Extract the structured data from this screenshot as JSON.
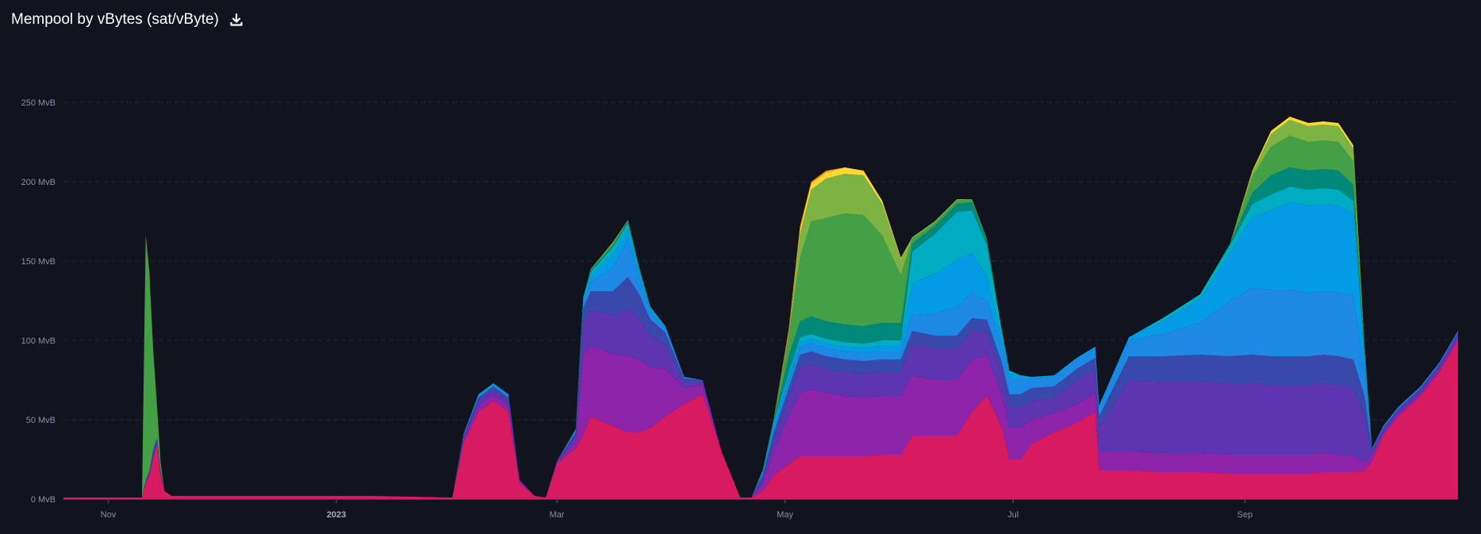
{
  "header": {
    "title": "Mempool by vBytes (sat/vByte)",
    "download_icon": "download-icon"
  },
  "colors": {
    "background": "#11131f",
    "gridline": "#262a3a",
    "tick_text": "#8a8fa3"
  },
  "chart_data": {
    "type": "area",
    "stacked": true,
    "title": "Mempool by vBytes (sat/vByte)",
    "unit": "MvB",
    "ylim": [
      0,
      250
    ],
    "yticks": [
      0,
      50,
      100,
      150,
      200,
      250
    ],
    "ytick_labels": [
      "0 MvB",
      "50 MvB",
      "100 MvB",
      "150 MvB",
      "200 MvB",
      "250 MvB"
    ],
    "x_range": [
      "2022-10-20",
      "2023-10-28"
    ],
    "xticks": [
      {
        "date": "2022-11-01",
        "label": "Nov",
        "bold": false
      },
      {
        "date": "2023-01-01",
        "label": "2023",
        "bold": true
      },
      {
        "date": "2023-03-01",
        "label": "Mar",
        "bold": false
      },
      {
        "date": "2023-05-01",
        "label": "May",
        "bold": false
      },
      {
        "date": "2023-07-01",
        "label": "Jul",
        "bold": false
      },
      {
        "date": "2023-09-01",
        "label": "Sep",
        "bold": false
      }
    ],
    "grid": true,
    "x": [
      "2022-10-20",
      "2022-11-10",
      "2022-11-11",
      "2022-11-12",
      "2022-11-13",
      "2022-11-14",
      "2022-11-15",
      "2022-11-16",
      "2022-11-18",
      "2022-12-15",
      "2023-01-10",
      "2023-02-01",
      "2023-02-04",
      "2023-02-08",
      "2023-02-12",
      "2023-02-16",
      "2023-02-19",
      "2023-02-23",
      "2023-02-26",
      "2023-03-01",
      "2023-03-06",
      "2023-03-08",
      "2023-03-10",
      "2023-03-16",
      "2023-03-20",
      "2023-03-23",
      "2023-03-26",
      "2023-03-30",
      "2023-04-04",
      "2023-04-09",
      "2023-04-14",
      "2023-04-19",
      "2023-04-22",
      "2023-04-25",
      "2023-04-28",
      "2023-05-02",
      "2023-05-05",
      "2023-05-08",
      "2023-05-12",
      "2023-05-17",
      "2023-05-22",
      "2023-05-27",
      "2023-06-01",
      "2023-06-04",
      "2023-06-10",
      "2023-06-16",
      "2023-06-20",
      "2023-06-24",
      "2023-06-28",
      "2023-06-30",
      "2023-07-03",
      "2023-07-06",
      "2023-07-12",
      "2023-07-18",
      "2023-07-23",
      "2023-07-24",
      "2023-08-01",
      "2023-08-10",
      "2023-08-20",
      "2023-08-28",
      "2023-09-03",
      "2023-09-08",
      "2023-09-13",
      "2023-09-18",
      "2023-09-22",
      "2023-09-26",
      "2023-09-30",
      "2023-10-03",
      "2023-10-05",
      "2023-10-08",
      "2023-10-12",
      "2023-10-18",
      "2023-10-23",
      "2023-10-28"
    ],
    "series": [
      {
        "color": "#d81b60",
        "values": [
          1,
          1,
          10,
          15,
          25,
          35,
          15,
          5,
          2,
          2,
          2,
          1,
          35,
          55,
          62,
          55,
          10,
          2,
          1,
          22,
          32,
          40,
          52,
          46,
          42,
          42,
          45,
          52,
          60,
          66,
          30,
          1,
          1,
          5,
          15,
          22,
          27,
          27,
          27,
          27,
          27,
          28,
          28,
          40,
          40,
          40,
          55,
          65,
          45,
          25,
          25,
          35,
          42,
          48,
          55,
          18,
          18,
          17,
          17,
          16,
          16,
          16,
          16,
          16,
          17,
          17,
          17,
          18,
          24,
          40,
          52,
          65,
          80,
          100
        ]
      },
      {
        "color": "#8e24aa",
        "values": [
          0,
          0,
          1,
          1,
          2,
          1,
          1,
          0,
          0,
          0,
          0,
          0,
          2,
          4,
          4,
          4,
          1,
          0,
          0,
          1,
          5,
          50,
          45,
          45,
          48,
          46,
          38,
          30,
          10,
          6,
          0,
          0,
          0,
          5,
          15,
          30,
          40,
          42,
          40,
          38,
          37,
          37,
          37,
          38,
          35,
          35,
          33,
          25,
          20,
          20,
          20,
          15,
          12,
          12,
          12,
          12,
          12,
          12,
          12,
          12,
          12,
          12,
          12,
          12,
          12,
          11,
          10,
          5,
          4,
          2,
          2,
          2,
          2,
          2
        ]
      },
      {
        "color": "#5e35b1",
        "values": [
          0,
          0,
          1,
          1,
          2,
          1,
          1,
          0,
          0,
          0,
          0,
          0,
          2,
          3,
          3,
          3,
          1,
          0,
          0,
          1,
          3,
          20,
          22,
          25,
          30,
          26,
          20,
          15,
          4,
          2,
          0,
          0,
          0,
          3,
          8,
          12,
          16,
          16,
          15,
          15,
          15,
          15,
          15,
          20,
          20,
          20,
          18,
          15,
          13,
          13,
          13,
          12,
          10,
          15,
          15,
          15,
          45,
          45,
          45,
          45,
          45,
          44,
          44,
          44,
          44,
          44,
          43,
          30,
          2,
          2,
          2,
          2,
          2,
          2
        ]
      },
      {
        "color": "#3949ab",
        "values": [
          0,
          0,
          0,
          1,
          1,
          1,
          1,
          0,
          0,
          0,
          0,
          0,
          1,
          2,
          2,
          2,
          0,
          0,
          0,
          0,
          2,
          10,
          12,
          15,
          20,
          15,
          10,
          8,
          2,
          1,
          0,
          0,
          0,
          2,
          4,
          6,
          8,
          8,
          8,
          8,
          8,
          8,
          8,
          8,
          8,
          8,
          8,
          8,
          8,
          8,
          8,
          8,
          7,
          7,
          7,
          7,
          15,
          16,
          17,
          17,
          18,
          18,
          18,
          18,
          18,
          18,
          18,
          12,
          1,
          1,
          1,
          1,
          1,
          1
        ]
      },
      {
        "color": "#1e88e5",
        "values": [
          0,
          0,
          0,
          0,
          1,
          1,
          0,
          0,
          0,
          0,
          0,
          0,
          1,
          1,
          1,
          1,
          0,
          0,
          0,
          0,
          1,
          4,
          6,
          15,
          24,
          10,
          5,
          3,
          1,
          0,
          0,
          0,
          0,
          1,
          3,
          4,
          5,
          5,
          5,
          5,
          5,
          5,
          5,
          10,
          14,
          18,
          16,
          12,
          10,
          10,
          10,
          6,
          6,
          6,
          6,
          6,
          10,
          14,
          20,
          35,
          42,
          42,
          42,
          40,
          40,
          40,
          40,
          14,
          1,
          1,
          1,
          1,
          1,
          1
        ]
      },
      {
        "color": "#039be5",
        "values": [
          0,
          0,
          0,
          0,
          1,
          0,
          0,
          0,
          0,
          0,
          0,
          0,
          0,
          1,
          1,
          1,
          0,
          0,
          0,
          0,
          1,
          2,
          4,
          8,
          6,
          4,
          2,
          1,
          0,
          0,
          0,
          0,
          0,
          1,
          2,
          3,
          3,
          3,
          3,
          3,
          3,
          4,
          4,
          20,
          25,
          30,
          25,
          15,
          5,
          3,
          2,
          1,
          1,
          1,
          1,
          1,
          2,
          8,
          15,
          30,
          45,
          50,
          55,
          55,
          55,
          55,
          52,
          10,
          0,
          0,
          0,
          0,
          0,
          0
        ]
      },
      {
        "color": "#00acc1",
        "values": [
          0,
          0,
          0,
          0,
          0,
          0,
          0,
          0,
          0,
          0,
          0,
          0,
          0,
          0,
          0,
          0,
          0,
          0,
          0,
          0,
          0,
          1,
          2,
          5,
          4,
          2,
          1,
          0,
          0,
          0,
          0,
          0,
          0,
          1,
          2,
          3,
          3,
          3,
          3,
          3,
          3,
          3,
          3,
          20,
          25,
          30,
          27,
          20,
          5,
          2,
          0,
          0,
          0,
          0,
          0,
          0,
          0,
          2,
          3,
          5,
          8,
          10,
          10,
          10,
          10,
          10,
          8,
          3,
          0,
          0,
          0,
          0,
          0,
          0
        ]
      },
      {
        "color": "#00897b",
        "values": [
          0,
          0,
          0,
          0,
          0,
          0,
          0,
          0,
          0,
          0,
          0,
          0,
          0,
          0,
          0,
          0,
          0,
          0,
          0,
          0,
          0,
          0,
          1,
          1,
          1,
          0,
          0,
          0,
          0,
          0,
          0,
          0,
          0,
          0,
          1,
          10,
          10,
          11,
          11,
          11,
          11,
          11,
          11,
          5,
          5,
          5,
          5,
          3,
          0,
          0,
          0,
          0,
          0,
          0,
          0,
          0,
          0,
          0,
          0,
          1,
          7,
          12,
          12,
          12,
          12,
          12,
          10,
          2,
          0,
          0,
          0,
          0,
          0,
          0
        ]
      },
      {
        "color": "#43a047",
        "values": [
          0,
          0,
          150,
          120,
          60,
          20,
          5,
          0,
          0,
          0,
          0,
          0,
          0,
          0,
          0,
          0,
          0,
          0,
          0,
          0,
          0,
          0,
          1,
          1,
          1,
          1,
          0,
          0,
          0,
          0,
          0,
          0,
          0,
          0,
          1,
          12,
          40,
          60,
          65,
          70,
          70,
          55,
          30,
          3,
          2,
          2,
          2,
          1,
          0,
          0,
          0,
          0,
          0,
          0,
          0,
          0,
          0,
          0,
          0,
          0,
          10,
          18,
          20,
          18,
          18,
          18,
          15,
          2,
          0,
          0,
          0,
          0,
          0,
          0
        ]
      },
      {
        "color": "#7cb342",
        "values": [
          0,
          0,
          3,
          3,
          2,
          1,
          0,
          0,
          0,
          0,
          0,
          0,
          0,
          0,
          0,
          0,
          0,
          0,
          0,
          0,
          0,
          0,
          0,
          1,
          0,
          0,
          0,
          0,
          0,
          0,
          0,
          0,
          0,
          0,
          0,
          2,
          15,
          20,
          25,
          25,
          25,
          20,
          10,
          1,
          1,
          1,
          0,
          0,
          0,
          0,
          0,
          0,
          0,
          0,
          0,
          0,
          0,
          0,
          0,
          0,
          3,
          8,
          10,
          10,
          10,
          10,
          8,
          1,
          0,
          0,
          0,
          0,
          0,
          0
        ]
      },
      {
        "color": "#fdd835",
        "values": [
          0,
          0,
          1,
          1,
          0,
          0,
          0,
          0,
          0,
          0,
          0,
          0,
          0,
          0,
          0,
          0,
          0,
          0,
          0,
          0,
          0,
          0,
          0,
          0,
          0,
          0,
          0,
          0,
          0,
          0,
          0,
          0,
          0,
          0,
          0,
          1,
          3,
          4,
          4,
          4,
          3,
          2,
          1,
          0,
          0,
          0,
          0,
          0,
          0,
          0,
          0,
          0,
          0,
          0,
          0,
          0,
          0,
          0,
          0,
          0,
          1,
          2,
          2,
          2,
          2,
          2,
          2,
          0,
          0,
          0,
          0,
          0,
          0,
          0
        ]
      },
      {
        "color": "#fb8c00",
        "values": [
          0,
          0,
          0,
          0,
          0,
          0,
          0,
          0,
          0,
          0,
          0,
          0,
          0,
          0,
          0,
          0,
          0,
          0,
          0,
          0,
          0,
          0,
          0,
          0,
          0,
          0,
          0,
          0,
          0,
          0,
          0,
          0,
          0,
          0,
          0,
          2,
          2,
          1,
          1,
          0,
          0,
          0,
          0,
          0,
          0,
          0,
          0,
          0,
          0,
          0,
          0,
          0,
          0,
          0,
          0,
          0,
          0,
          0,
          0,
          0,
          0,
          0,
          0,
          0,
          0,
          0,
          0,
          0,
          0,
          0,
          0,
          0,
          0,
          0
        ]
      }
    ]
  }
}
